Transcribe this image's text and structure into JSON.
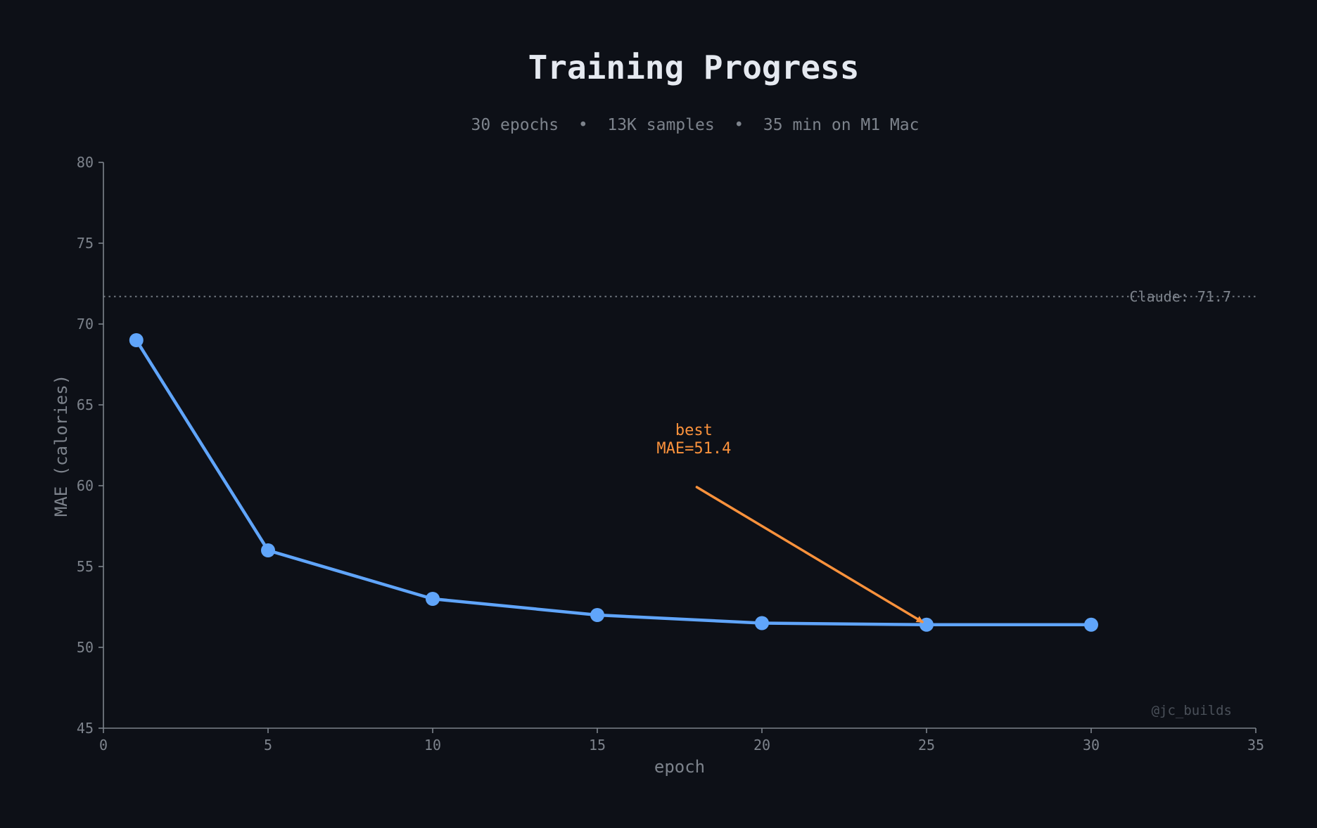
{
  "header": {
    "title": "Training Progress",
    "subtitle": "30 epochs  •  13K samples  •  35 min on M1 Mac"
  },
  "watermark": "@jc_builds",
  "colors": {
    "background": "#0d1017",
    "series": "#60a5fa",
    "annotation": "#fb923c",
    "axis": "#7d838c",
    "reference": "#7d838c",
    "title": "#e5e9f0"
  },
  "chart_data": {
    "type": "line",
    "title": "Training Progress",
    "subtitle": "30 epochs  •  13K samples  •  35 min on M1 Mac",
    "xlabel": "epoch",
    "ylabel": "MAE (calories)",
    "xlim": [
      0,
      35
    ],
    "ylim": [
      45,
      80
    ],
    "xticks": [
      0,
      5,
      10,
      15,
      20,
      25,
      30,
      35
    ],
    "yticks": [
      45,
      50,
      55,
      60,
      65,
      70,
      75,
      80
    ],
    "grid": false,
    "legend": null,
    "series": [
      {
        "name": "MAE",
        "x": [
          1,
          5,
          10,
          15,
          20,
          25,
          30
        ],
        "values": [
          69.0,
          56.0,
          53.0,
          52.0,
          51.5,
          51.4,
          51.4
        ],
        "marker": "circle",
        "color": "#60a5fa"
      }
    ],
    "reference_lines": [
      {
        "label": "Claude: 71.7",
        "y": 71.7,
        "style": "dotted"
      }
    ],
    "annotations": [
      {
        "text_lines": [
          "best",
          "MAE=51.4"
        ],
        "text_xy": [
          18,
          61.5
        ],
        "arrow_from": [
          18,
          60
        ],
        "arrow_to": [
          25,
          51.4
        ],
        "color": "#fb923c"
      }
    ]
  }
}
